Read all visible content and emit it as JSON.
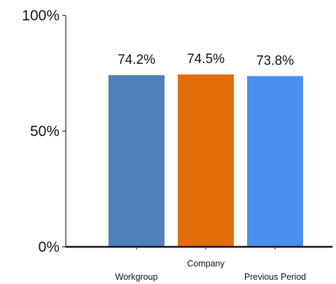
{
  "chart_data": {
    "type": "bar",
    "categories": [
      "Workgroup",
      "Company",
      "Previous Period"
    ],
    "values": [
      74.2,
      74.5,
      73.8
    ],
    "data_labels": [
      "74.2%",
      "74.5%",
      "73.8%"
    ],
    "colors": [
      "#4f81bd",
      "#e36c0a",
      "#4a8ef0"
    ],
    "y_ticks": [
      {
        "value": 0,
        "label": "0%"
      },
      {
        "value": 50,
        "label": "50%"
      },
      {
        "value": 100,
        "label": "100%"
      }
    ],
    "ylim": [
      0,
      100
    ],
    "grid": false,
    "legend": "none",
    "title": "",
    "xlabel": "",
    "ylabel": ""
  }
}
